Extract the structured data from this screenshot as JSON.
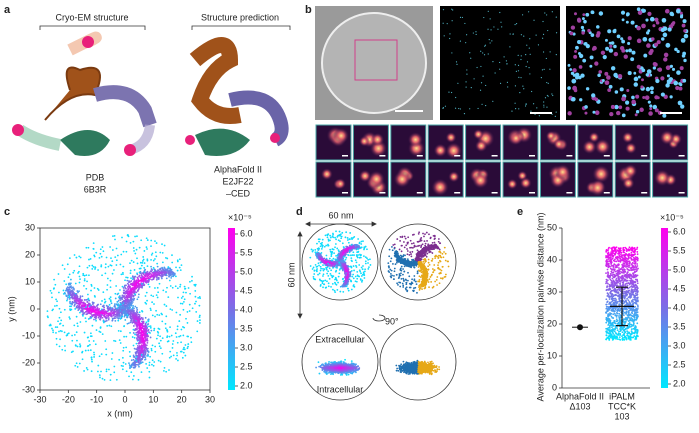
{
  "panel_a": {
    "label": "a",
    "left_title": "Cryo-EM structure",
    "right_title": "Structure prediction",
    "left_caption": [
      "PDB",
      "6B3R"
    ],
    "right_caption": [
      "AlphaFold II",
      "E2JF22",
      "–CED"
    ]
  },
  "panel_b": {
    "label": "b"
  },
  "panel_c": {
    "label": "c",
    "x_label": "x (nm)",
    "y_label": "y (nm)",
    "xlim": [
      -30,
      30
    ],
    "xticks": [
      -30,
      -20,
      -10,
      0,
      10,
      20,
      30
    ],
    "ylim": [
      -30,
      30
    ],
    "yticks": [
      -30,
      -20,
      -10,
      0,
      10,
      20,
      30
    ],
    "colorbar": {
      "exponent": "×10⁻⁵",
      "lim": [
        2,
        6
      ],
      "ticks": [
        {
          "value": 2,
          "label": "2.0"
        },
        {
          "value": 2.5,
          "label": "2.5"
        },
        {
          "value": 3,
          "label": "3.0"
        },
        {
          "value": 3.5,
          "label": "3.5"
        },
        {
          "value": 4,
          "label": "4.0"
        },
        {
          "value": 4.5,
          "label": "4.5"
        },
        {
          "value": 5,
          "label": "5.0"
        },
        {
          "value": 5.5,
          "label": "5.5"
        },
        {
          "value": 6,
          "label": "6.0"
        }
      ]
    }
  },
  "panel_d": {
    "label": "d",
    "width_label": "60 nm",
    "height_label": "60 nm",
    "rotation": "90°",
    "top_label": "Extracellular",
    "bottom_label": "Intracellular"
  },
  "panel_e": {
    "label": "e",
    "y_label": "Average per-localization pairwise distance (nm)",
    "ylim": [
      0,
      50
    ],
    "yticks": [
      0,
      10,
      20,
      30,
      40,
      50
    ],
    "points": [
      {
        "category": [
          "AlphaFold II",
          "Δ103"
        ],
        "value": 19
      },
      {
        "category": [
          "iPALM",
          "TCC*K",
          "103"
        ],
        "value": 25.5,
        "error": 6
      }
    ],
    "colorbar": {
      "exponent": "×10⁻⁵",
      "lim": [
        2,
        6
      ],
      "ticks": [
        {
          "value": 2,
          "label": "2.0"
        },
        {
          "value": 2.5,
          "label": "2.5"
        },
        {
          "value": 3,
          "label": "3.0"
        },
        {
          "value": 3.5,
          "label": "3.5"
        },
        {
          "value": 4,
          "label": "4.0"
        },
        {
          "value": 4.5,
          "label": "4.5"
        },
        {
          "value": 5,
          "label": "5.0"
        },
        {
          "value": 5.5,
          "label": "5.5"
        },
        {
          "value": 6,
          "label": "6.0"
        }
      ]
    }
  }
}
